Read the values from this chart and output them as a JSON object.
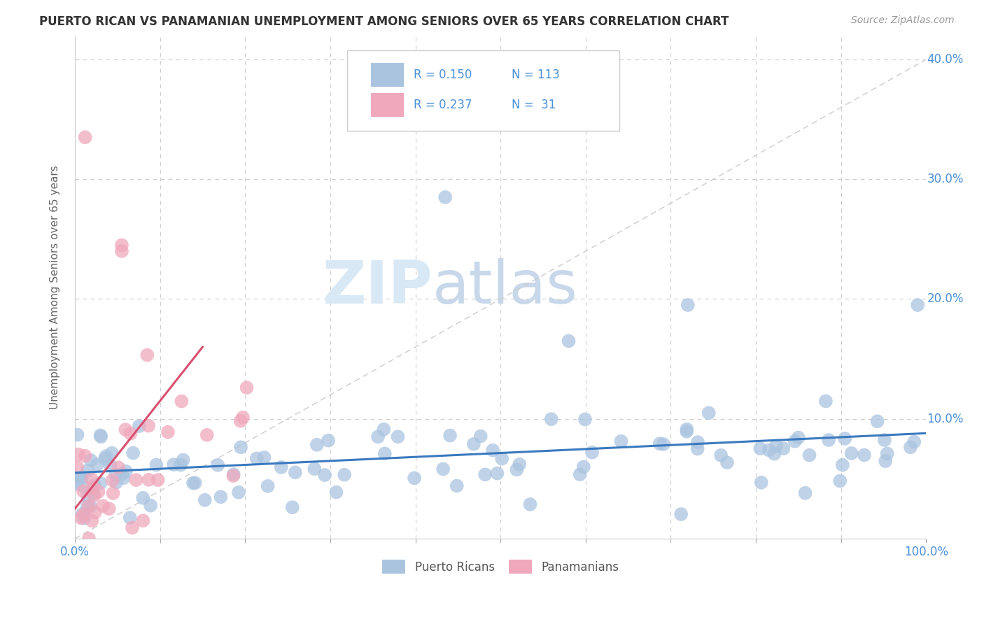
{
  "title": "PUERTO RICAN VS PANAMANIAN UNEMPLOYMENT AMONG SENIORS OVER 65 YEARS CORRELATION CHART",
  "source": "Source: ZipAtlas.com",
  "ylabel": "Unemployment Among Seniors over 65 years",
  "xlim": [
    0.0,
    1.0
  ],
  "ylim": [
    0.0,
    0.42
  ],
  "x_ticks": [
    0.0,
    0.1,
    0.2,
    0.3,
    0.4,
    0.5,
    0.6,
    0.7,
    0.8,
    0.9,
    1.0
  ],
  "y_ticks": [
    0.0,
    0.1,
    0.2,
    0.3,
    0.4
  ],
  "y_right_labels": [
    "0.0%",
    "10.0%",
    "20.0%",
    "30.0%",
    "40.0%"
  ],
  "puerto_rican_color": "#aac4e0",
  "panamanian_color": "#f0a8bc",
  "puerto_rican_line_color": "#3a7abf",
  "panamanian_line_color": "#d94f70",
  "r_puerto_rican": 0.15,
  "n_puerto_rican": 113,
  "r_panamanian": 0.237,
  "n_panamanian": 31,
  "watermark_zip": "ZIP",
  "watermark_atlas": "atlas",
  "background_color": "#ffffff",
  "grid_color": "#cccccc",
  "legend_text_color": "#4a90d9",
  "title_color": "#333333",
  "source_color": "#999999",
  "ylabel_color": "#666666",
  "tick_label_color": "#4a90d9"
}
